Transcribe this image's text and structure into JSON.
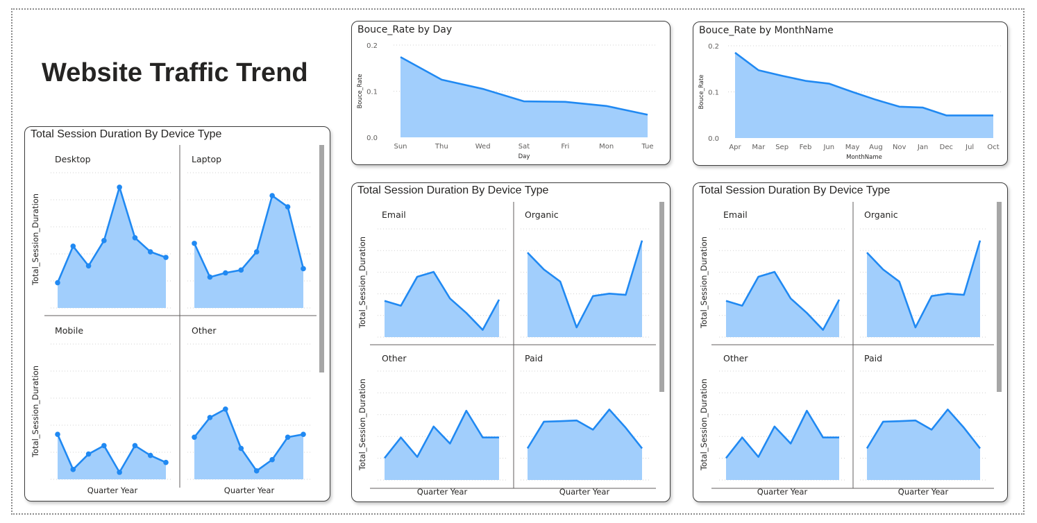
{
  "page_title": "Website Traffic Trend",
  "colors": {
    "line": "#2089f2",
    "area": "#a1cefc",
    "grid": "#d0d0d0",
    "text": "#252423",
    "axis_text": "#605e5c"
  },
  "chart_data": [
    {
      "id": "device",
      "type": "area",
      "title": "Total Session Duration By Device Type",
      "xlabel": "Quarter Year",
      "ylabel": "Total_Session_Duration",
      "markers": true,
      "series": [
        {
          "name": "Desktop",
          "values": [
            0.9,
            2.2,
            1.5,
            2.4,
            4.3,
            2.5,
            2.0,
            1.8
          ]
        },
        {
          "name": "Laptop",
          "values": [
            2.3,
            1.1,
            1.25,
            1.35,
            2.0,
            4.0,
            3.6,
            1.4
          ]
        },
        {
          "name": "Mobile",
          "values": [
            1.6,
            0.35,
            0.9,
            1.2,
            0.25,
            1.2,
            0.85,
            0.6
          ]
        },
        {
          "name": "Other",
          "values": [
            1.5,
            2.2,
            2.5,
            1.1,
            0.3,
            0.7,
            1.5,
            1.6
          ]
        }
      ]
    },
    {
      "id": "bounce_day",
      "type": "area",
      "title": "Bouce_Rate by Day",
      "xlabel": "Day",
      "ylabel": "Bouce_Rate",
      "categories": [
        "Sun",
        "Thu",
        "Wed",
        "Sat",
        "Fri",
        "Mon",
        "Tue"
      ],
      "values": [
        0.174,
        0.125,
        0.105,
        0.078,
        0.077,
        0.068,
        0.049
      ],
      "ylim": [
        0,
        0.2
      ],
      "yticks": [
        "0.0",
        "0.1",
        "0.2"
      ]
    },
    {
      "id": "bounce_month",
      "type": "area",
      "title": "Bouce_Rate by MonthName",
      "xlabel": "MonthName",
      "ylabel": "Bouce_Rate",
      "categories": [
        "Apr",
        "Mar",
        "Sep",
        "Feb",
        "Jun",
        "May",
        "Aug",
        "Nov",
        "Jan",
        "Dec",
        "Jul",
        "Oct"
      ],
      "values": [
        0.185,
        0.147,
        0.135,
        0.124,
        0.118,
        0.1,
        0.083,
        0.068,
        0.066,
        0.049,
        0.049,
        0.049
      ],
      "ylim": [
        0,
        0.2
      ],
      "yticks": [
        "0.0",
        "0.1",
        "0.2"
      ]
    },
    {
      "id": "source1",
      "type": "area",
      "title": "Total Session Duration By Device Type",
      "xlabel": "Quarter Year",
      "ylabel": "Total_Session_Duration",
      "markers": false,
      "series": [
        {
          "name": "Email",
          "values": [
            1.5,
            1.3,
            2.5,
            2.7,
            1.6,
            1.0,
            0.3,
            1.55
          ]
        },
        {
          "name": "Organic",
          "values": [
            3.5,
            2.8,
            2.3,
            0.4,
            1.7,
            1.8,
            1.75,
            4.0
          ]
        },
        {
          "name": "Other",
          "values": [
            0.9,
            1.75,
            0.95,
            2.2,
            1.5,
            2.85,
            1.75,
            1.75
          ]
        },
        {
          "name": "Paid",
          "values": [
            1.3,
            2.4,
            2.42,
            2.45,
            2.07,
            2.9,
            2.15,
            1.3
          ]
        }
      ]
    },
    {
      "id": "source2",
      "type": "area",
      "title": "Total Session Duration By Device Type",
      "xlabel": "Quarter Year",
      "ylabel": "Total_Session_Duration",
      "markers": false,
      "series": [
        {
          "name": "Email",
          "values": [
            1.5,
            1.3,
            2.5,
            2.7,
            1.6,
            1.0,
            0.3,
            1.55
          ]
        },
        {
          "name": "Organic",
          "values": [
            3.5,
            2.8,
            2.3,
            0.4,
            1.7,
            1.8,
            1.75,
            4.0
          ]
        },
        {
          "name": "Other",
          "values": [
            0.9,
            1.75,
            0.95,
            2.2,
            1.5,
            2.85,
            1.75,
            1.75
          ]
        },
        {
          "name": "Paid",
          "values": [
            1.3,
            2.4,
            2.42,
            2.45,
            2.07,
            2.9,
            2.15,
            1.3
          ]
        }
      ]
    }
  ]
}
